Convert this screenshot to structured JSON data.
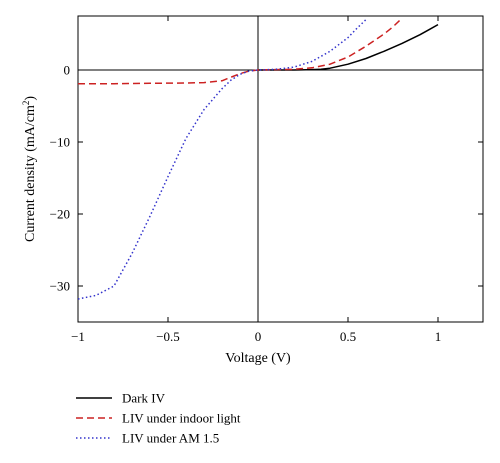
{
  "chart_data": {
    "type": "line",
    "xlabel": "Voltage (V)",
    "ylabel_main": "Current density (mA/cm",
    "ylabel_sup": "2",
    "ylabel_tail": ")",
    "xlim": [
      -1,
      1.25
    ],
    "ylim": [
      -35,
      7.5
    ],
    "x_ticks": [
      -1,
      -0.5,
      0,
      0.5,
      1
    ],
    "x_tick_labels": [
      "−1",
      "−0.5",
      "0",
      "0.5",
      "1"
    ],
    "y_ticks": [
      0,
      -10,
      -20,
      -30
    ],
    "y_tick_labels": [
      "0",
      "−10",
      "−20",
      "−30"
    ],
    "zero_lines": true,
    "legend_position": "bottom-left",
    "series": [
      {
        "name": "Dark IV",
        "color": "#000000",
        "style": "solid",
        "x": [
          0,
          0.1,
          0.2,
          0.3,
          0.35,
          0.4,
          0.5,
          0.6,
          0.7,
          0.8,
          0.9,
          0.95,
          1.0
        ],
        "y": [
          0,
          0,
          0,
          0.05,
          0.1,
          0.25,
          0.8,
          1.6,
          2.6,
          3.7,
          4.9,
          5.6,
          6.3
        ]
      },
      {
        "name": "LIV under indoor light",
        "color": "#cc2222",
        "style": "dashed",
        "x": [
          -1,
          -0.8,
          -0.6,
          -0.4,
          -0.3,
          -0.2,
          -0.15,
          -0.1,
          -0.05,
          0,
          0.1,
          0.2,
          0.3,
          0.4,
          0.5,
          0.6,
          0.7,
          0.75,
          0.8
        ],
        "y": [
          -1.9,
          -1.9,
          -1.85,
          -1.8,
          -1.75,
          -1.5,
          -1.0,
          -0.5,
          -0.15,
          0,
          0.05,
          0.1,
          0.3,
          0.8,
          1.8,
          3.3,
          5.0,
          6.0,
          7.2
        ]
      },
      {
        "name": "LIV under AM 1.5",
        "color": "#3333cc",
        "style": "dotted",
        "x": [
          -1,
          -0.9,
          -0.8,
          -0.7,
          -0.6,
          -0.5,
          -0.4,
          -0.3,
          -0.2,
          -0.15,
          -0.1,
          -0.05,
          0,
          0.1,
          0.2,
          0.3,
          0.4,
          0.5,
          0.55,
          0.6
        ],
        "y": [
          -31.8,
          -31.3,
          -30.0,
          -25.5,
          -20.3,
          -14.8,
          -9.5,
          -5.5,
          -2.6,
          -1.4,
          -0.6,
          -0.15,
          0,
          0.1,
          0.4,
          1.2,
          2.6,
          4.5,
          5.8,
          7.0
        ]
      }
    ]
  }
}
